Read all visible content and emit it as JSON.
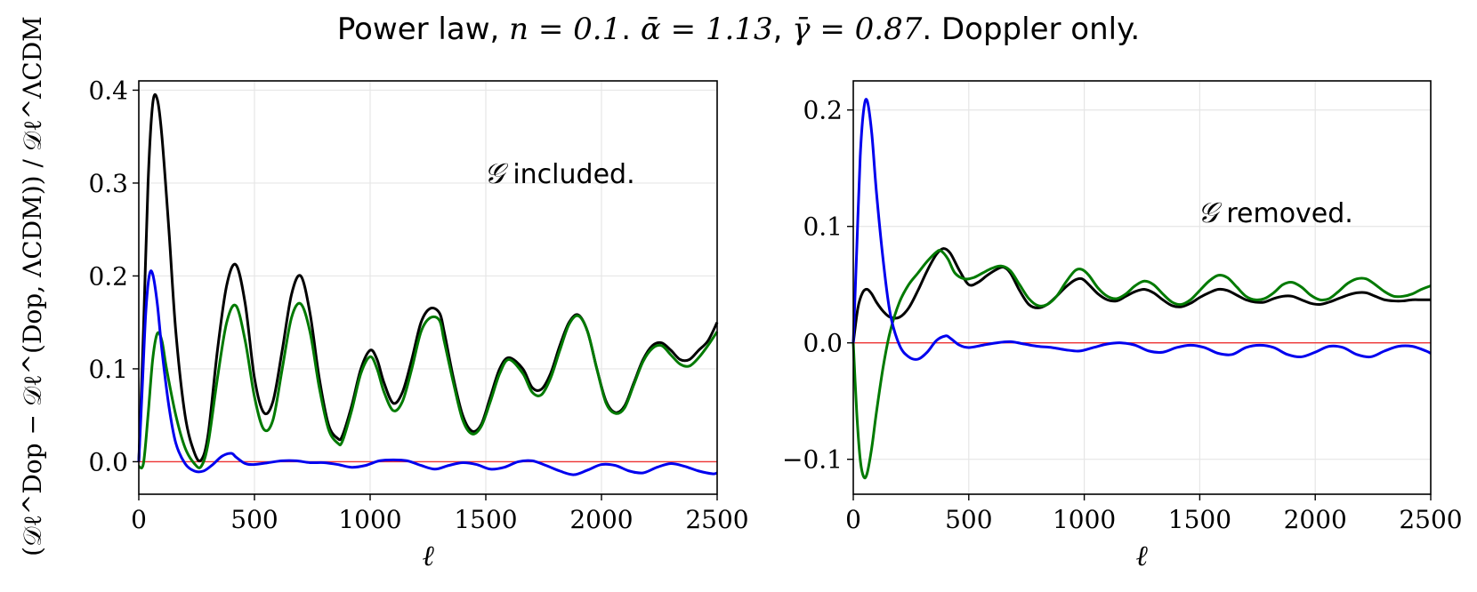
{
  "figure": {
    "title_prefix": "Power law, ",
    "title_n": "n = 0.1",
    "title_sep1": ". ",
    "title_alpha": "ᾱ = 1.13",
    "title_sep2": ", ",
    "title_gamma": "γ̄ = 0.87",
    "title_suffix": ". Doppler only.",
    "ylabel_left": "(𝒟ℓ^Dop − 𝒟ℓ^(Dop, ΛCDM)) / 𝒟ℓ^ΛCDM"
  },
  "colors": {
    "black": "#000000",
    "blue": "#0000ee",
    "green": "#007a00",
    "zero_line": "#ee3333"
  },
  "chart_data": [
    {
      "type": "line",
      "name": "left-panel",
      "annotation_symbol": "𝒢",
      "annotation_text": " included.",
      "xlabel": "ℓ",
      "ylabel": "(𝒟ℓ^Dop − 𝒟ℓ^(Dop, ΛCDM)) / 𝒟ℓ^ΛCDM",
      "xlim": [
        0,
        2500
      ],
      "ylim": [
        -0.035,
        0.41
      ],
      "xticks": [
        0,
        500,
        1000,
        1500,
        2000,
        2500
      ],
      "xtick_labels": [
        "0",
        "500",
        "1000",
        "1500",
        "2000",
        "2500"
      ],
      "yticks": [
        0.0,
        0.1,
        0.2,
        0.3,
        0.4
      ],
      "ytick_labels": [
        "0.0",
        "0.1",
        "0.2",
        "0.3",
        "0.4"
      ],
      "grid": true,
      "hline": 0.0,
      "series": [
        {
          "name": "black",
          "color": "#000000",
          "x": [
            0,
            20,
            40,
            60,
            80,
            100,
            130,
            160,
            200,
            240,
            270,
            300,
            340,
            380,
            420,
            460,
            500,
            540,
            580,
            620,
            660,
            700,
            740,
            780,
            820,
            860,
            880,
            920,
            960,
            1000,
            1030,
            1060,
            1100,
            1140,
            1180,
            1220,
            1260,
            1300,
            1320,
            1360,
            1400,
            1440,
            1480,
            1520,
            1560,
            1600,
            1660,
            1700,
            1740,
            1780,
            1820,
            1860,
            1900,
            1940,
            1980,
            2020,
            2060,
            2100,
            2140,
            2180,
            2220,
            2260,
            2300,
            2340,
            2380,
            2420,
            2460,
            2500
          ],
          "y": [
            0.0,
            0.14,
            0.3,
            0.385,
            0.39,
            0.35,
            0.25,
            0.14,
            0.05,
            0.01,
            0.002,
            0.03,
            0.12,
            0.19,
            0.212,
            0.17,
            0.09,
            0.053,
            0.065,
            0.12,
            0.18,
            0.2,
            0.16,
            0.09,
            0.04,
            0.025,
            0.028,
            0.06,
            0.1,
            0.12,
            0.11,
            0.085,
            0.063,
            0.075,
            0.11,
            0.15,
            0.165,
            0.16,
            0.14,
            0.09,
            0.05,
            0.033,
            0.04,
            0.07,
            0.1,
            0.112,
            0.1,
            0.08,
            0.078,
            0.095,
            0.125,
            0.15,
            0.158,
            0.14,
            0.1,
            0.065,
            0.053,
            0.06,
            0.085,
            0.11,
            0.125,
            0.128,
            0.12,
            0.11,
            0.11,
            0.12,
            0.13,
            0.15
          ]
        },
        {
          "name": "green",
          "color": "#007a00",
          "x": [
            0,
            20,
            40,
            60,
            80,
            100,
            120,
            160,
            200,
            240,
            270,
            300,
            340,
            380,
            420,
            460,
            500,
            540,
            580,
            620,
            660,
            700,
            740,
            780,
            820,
            860,
            880,
            920,
            960,
            1000,
            1030,
            1060,
            1100,
            1140,
            1180,
            1220,
            1260,
            1300,
            1320,
            1360,
            1400,
            1440,
            1480,
            1520,
            1560,
            1600,
            1660,
            1700,
            1740,
            1780,
            1820,
            1860,
            1900,
            1940,
            1980,
            2020,
            2060,
            2100,
            2140,
            2180,
            2220,
            2260,
            2300,
            2340,
            2380,
            2420,
            2460,
            2500
          ],
          "y": [
            -0.005,
            -0.002,
            0.05,
            0.11,
            0.138,
            0.13,
            0.1,
            0.05,
            0.015,
            -0.002,
            -0.005,
            0.02,
            0.09,
            0.15,
            0.168,
            0.13,
            0.07,
            0.035,
            0.045,
            0.1,
            0.155,
            0.17,
            0.14,
            0.08,
            0.035,
            0.02,
            0.022,
            0.055,
            0.095,
            0.113,
            0.1,
            0.075,
            0.055,
            0.065,
            0.1,
            0.14,
            0.155,
            0.152,
            0.13,
            0.085,
            0.045,
            0.03,
            0.038,
            0.065,
            0.095,
            0.11,
            0.095,
            0.075,
            0.072,
            0.09,
            0.12,
            0.148,
            0.157,
            0.14,
            0.1,
            0.063,
            0.052,
            0.058,
            0.083,
            0.108,
            0.122,
            0.125,
            0.115,
            0.105,
            0.103,
            0.112,
            0.125,
            0.14
          ]
        },
        {
          "name": "blue",
          "color": "#0000ee",
          "x": [
            0,
            15,
            30,
            45,
            60,
            80,
            100,
            130,
            160,
            200,
            240,
            280,
            320,
            360,
            400,
            420,
            460,
            500,
            560,
            620,
            680,
            740,
            800,
            860,
            920,
            980,
            1040,
            1100,
            1160,
            1220,
            1280,
            1340,
            1400,
            1460,
            1520,
            1580,
            1640,
            1700,
            1760,
            1820,
            1880,
            1940,
            2000,
            2060,
            2120,
            2180,
            2240,
            2300,
            2360,
            2420,
            2480,
            2500
          ],
          "y": [
            0.0,
            0.08,
            0.16,
            0.2,
            0.202,
            0.17,
            0.12,
            0.06,
            0.02,
            -0.002,
            -0.01,
            -0.01,
            -0.003,
            0.006,
            0.009,
            0.005,
            -0.002,
            -0.003,
            -0.001,
            0.001,
            0.001,
            -0.001,
            -0.001,
            -0.003,
            -0.006,
            -0.004,
            0.001,
            0.002,
            0.001,
            -0.004,
            -0.008,
            -0.004,
            -0.001,
            -0.003,
            -0.008,
            -0.006,
            0.0,
            0.001,
            -0.004,
            -0.01,
            -0.014,
            -0.009,
            -0.003,
            -0.004,
            -0.01,
            -0.012,
            -0.006,
            -0.002,
            -0.005,
            -0.01,
            -0.013,
            -0.012
          ]
        }
      ]
    },
    {
      "type": "line",
      "name": "right-panel",
      "annotation_symbol": "𝒢",
      "annotation_text": " removed.",
      "xlabel": "ℓ",
      "xlim": [
        0,
        2500
      ],
      "ylim": [
        -0.13,
        0.225
      ],
      "xticks": [
        0,
        500,
        1000,
        1500,
        2000,
        2500
      ],
      "xtick_labels": [
        "0",
        "500",
        "1000",
        "1500",
        "2000",
        "2500"
      ],
      "yticks": [
        -0.1,
        0.0,
        0.1,
        0.2
      ],
      "ytick_labels": [
        "−0.1",
        "0.0",
        "0.1",
        "0.2"
      ],
      "grid": true,
      "hline": 0.0,
      "series": [
        {
          "name": "black",
          "color": "#000000",
          "x": [
            0,
            20,
            40,
            60,
            80,
            100,
            130,
            160,
            200,
            240,
            280,
            320,
            360,
            390,
            420,
            460,
            500,
            540,
            580,
            620,
            650,
            680,
            720,
            760,
            800,
            840,
            880,
            920,
            960,
            990,
            1020,
            1060,
            1100,
            1140,
            1180,
            1220,
            1260,
            1300,
            1340,
            1380,
            1420,
            1460,
            1500,
            1540,
            1580,
            1620,
            1660,
            1700,
            1740,
            1780,
            1820,
            1860,
            1900,
            1940,
            1980,
            2020,
            2060,
            2100,
            2140,
            2180,
            2220,
            2260,
            2300,
            2340,
            2380,
            2420,
            2460,
            2500
          ],
          "y": [
            0.0,
            0.03,
            0.043,
            0.046,
            0.042,
            0.035,
            0.027,
            0.022,
            0.022,
            0.03,
            0.045,
            0.062,
            0.076,
            0.081,
            0.077,
            0.062,
            0.05,
            0.052,
            0.058,
            0.063,
            0.065,
            0.06,
            0.045,
            0.033,
            0.03,
            0.033,
            0.04,
            0.048,
            0.054,
            0.055,
            0.05,
            0.042,
            0.037,
            0.036,
            0.04,
            0.044,
            0.046,
            0.043,
            0.037,
            0.032,
            0.031,
            0.034,
            0.039,
            0.043,
            0.046,
            0.045,
            0.041,
            0.037,
            0.035,
            0.035,
            0.038,
            0.04,
            0.04,
            0.037,
            0.034,
            0.033,
            0.035,
            0.038,
            0.041,
            0.043,
            0.043,
            0.04,
            0.037,
            0.036,
            0.036,
            0.037,
            0.037,
            0.037
          ]
        },
        {
          "name": "green",
          "color": "#007a00",
          "x": [
            0,
            15,
            30,
            45,
            60,
            80,
            100,
            130,
            160,
            200,
            240,
            280,
            320,
            360,
            380,
            410,
            440,
            480,
            520,
            560,
            600,
            640,
            680,
            720,
            760,
            800,
            840,
            880,
            920,
            960,
            990,
            1020,
            1060,
            1100,
            1140,
            1180,
            1220,
            1260,
            1300,
            1340,
            1380,
            1420,
            1460,
            1500,
            1540,
            1580,
            1620,
            1660,
            1700,
            1740,
            1780,
            1820,
            1860,
            1900,
            1940,
            1980,
            2020,
            2060,
            2100,
            2140,
            2180,
            2220,
            2260,
            2300,
            2340,
            2380,
            2420,
            2460,
            2500
          ],
          "y": [
            0.0,
            -0.06,
            -0.1,
            -0.115,
            -0.112,
            -0.09,
            -0.06,
            -0.02,
            0.01,
            0.035,
            0.05,
            0.06,
            0.07,
            0.078,
            0.079,
            0.072,
            0.06,
            0.055,
            0.056,
            0.06,
            0.064,
            0.066,
            0.062,
            0.05,
            0.038,
            0.032,
            0.033,
            0.04,
            0.052,
            0.062,
            0.063,
            0.058,
            0.047,
            0.04,
            0.038,
            0.042,
            0.049,
            0.053,
            0.05,
            0.042,
            0.035,
            0.033,
            0.037,
            0.045,
            0.053,
            0.058,
            0.056,
            0.048,
            0.04,
            0.037,
            0.038,
            0.043,
            0.05,
            0.052,
            0.048,
            0.041,
            0.037,
            0.038,
            0.044,
            0.051,
            0.055,
            0.055,
            0.05,
            0.044,
            0.04,
            0.04,
            0.042,
            0.046,
            0.049
          ]
        },
        {
          "name": "blue",
          "color": "#0000ee",
          "x": [
            0,
            15,
            30,
            45,
            60,
            80,
            100,
            130,
            160,
            200,
            240,
            280,
            320,
            360,
            400,
            420,
            460,
            500,
            560,
            620,
            680,
            740,
            800,
            860,
            920,
            980,
            1040,
            1100,
            1160,
            1220,
            1280,
            1340,
            1400,
            1460,
            1520,
            1580,
            1640,
            1700,
            1760,
            1820,
            1880,
            1940,
            2000,
            2060,
            2120,
            2180,
            2240,
            2300,
            2360,
            2420,
            2480,
            2500
          ],
          "y": [
            0.0,
            0.08,
            0.16,
            0.2,
            0.208,
            0.18,
            0.13,
            0.07,
            0.025,
            -0.002,
            -0.012,
            -0.014,
            -0.008,
            0.002,
            0.006,
            0.004,
            -0.002,
            -0.004,
            -0.002,
            0.0,
            0.001,
            -0.001,
            -0.003,
            -0.004,
            -0.006,
            -0.007,
            -0.004,
            -0.001,
            0.0,
            -0.002,
            -0.007,
            -0.008,
            -0.004,
            -0.002,
            -0.004,
            -0.009,
            -0.01,
            -0.004,
            -0.002,
            -0.004,
            -0.01,
            -0.012,
            -0.008,
            -0.003,
            -0.004,
            -0.01,
            -0.012,
            -0.007,
            -0.003,
            -0.003,
            -0.007,
            -0.009
          ]
        }
      ]
    }
  ]
}
